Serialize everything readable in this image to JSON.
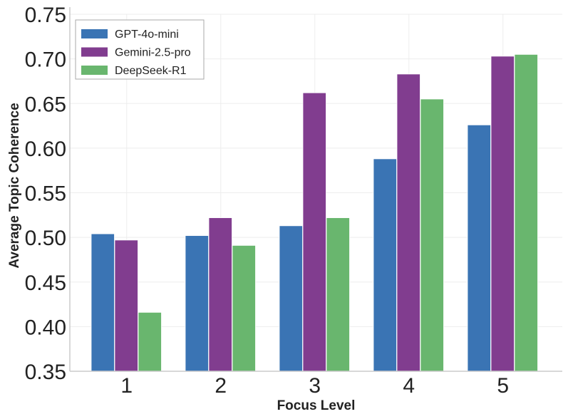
{
  "chart_data": {
    "type": "bar",
    "title": "",
    "xlabel": "Focus Level",
    "ylabel": "Average Topic Coherence",
    "categories": [
      "1",
      "2",
      "3",
      "4",
      "5"
    ],
    "ylim": [
      0.35,
      0.75
    ],
    "yticks": [
      "0.35",
      "0.40",
      "0.45",
      "0.50",
      "0.55",
      "0.60",
      "0.65",
      "0.70",
      "0.75"
    ],
    "grid": true,
    "legend_position": "top-left",
    "series": [
      {
        "name": "GPT-4o-mini",
        "color": "#3a74b4",
        "values": [
          0.504,
          0.502,
          0.513,
          0.588,
          0.626
        ]
      },
      {
        "name": "Gemini-2.5-pro",
        "color": "#813d8f",
        "values": [
          0.497,
          0.522,
          0.662,
          0.683,
          0.703
        ]
      },
      {
        "name": "DeepSeek-R1",
        "color": "#69b66e",
        "values": [
          0.416,
          0.491,
          0.522,
          0.655,
          0.705
        ]
      }
    ]
  }
}
